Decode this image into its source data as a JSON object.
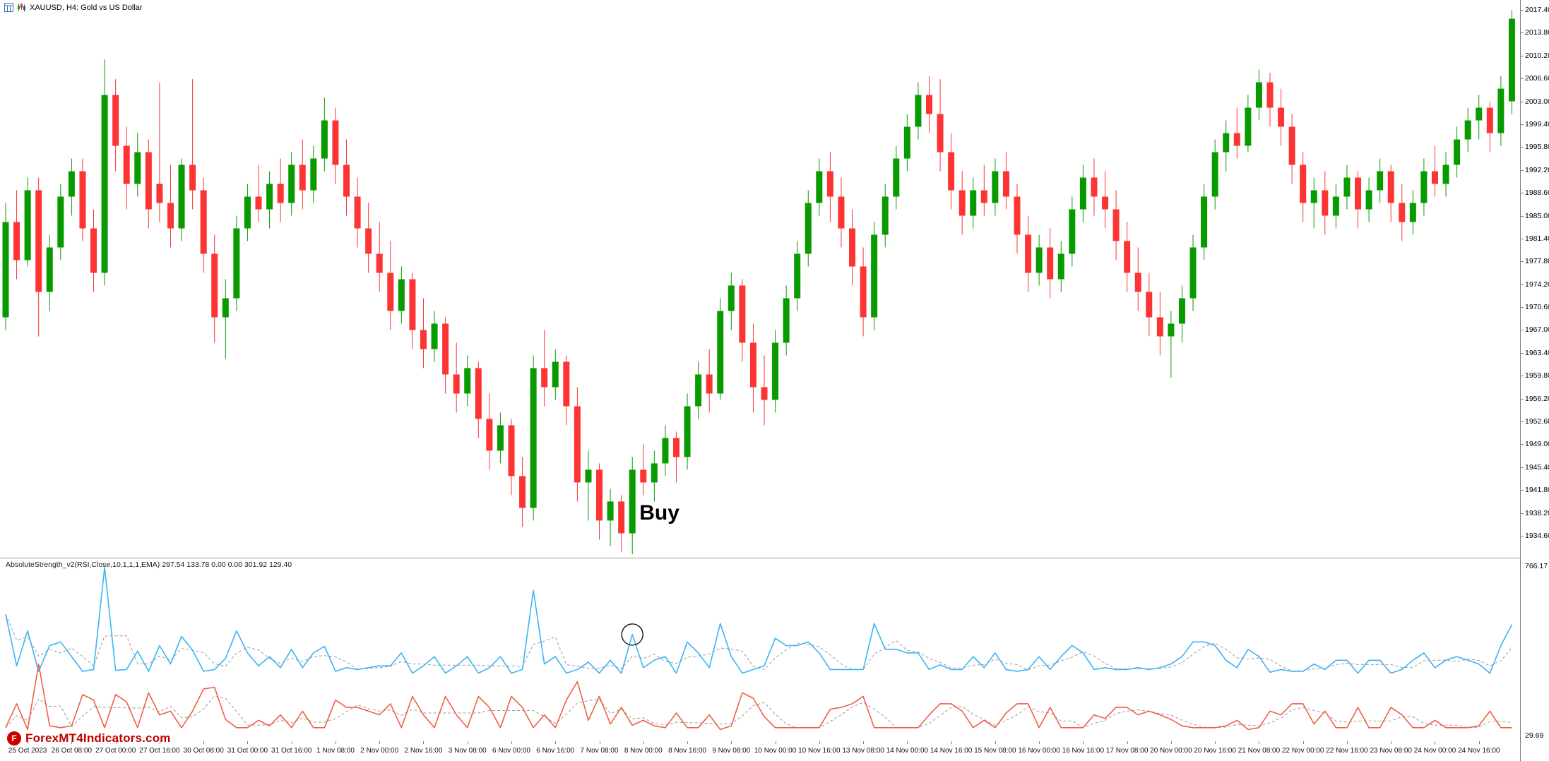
{
  "window": {
    "title": "XAUUSD, H4: Gold vs US Dollar",
    "symbol": "XAUUSD",
    "timeframe": "H4",
    "description": "Gold vs US Dollar",
    "icons": [
      "grid-window-icon",
      "candlestick-chart-icon"
    ]
  },
  "annotations": {
    "buy_label": "Buy",
    "buy_index": 57,
    "circle_index": 57
  },
  "watermark": {
    "logo_letter": "F",
    "text": "ForexMT4Indicators.com",
    "color": "#c00000"
  },
  "indicator_panel": {
    "label": "AbsoluteStrength_v2(RSI,Close,10,1,1,1,EMA) 297.54 133.78 0.00 0.00 301.92 129.40",
    "scale_max": "766.17",
    "scale_min": "29.69"
  },
  "price_axis": {
    "labels": [
      "2017.40",
      "2013.80",
      "2010.20",
      "2006.60",
      "2003.00",
      "1999.40",
      "1995.80",
      "1992.20",
      "1988.60",
      "1985.00",
      "1981.40",
      "1977.80",
      "1974.20",
      "1970.60",
      "1967.00",
      "1963.40",
      "1959.80",
      "1956.20",
      "1952.60",
      "1949.00",
      "1945.40",
      "1941.80",
      "1938.20",
      "1934.60"
    ]
  },
  "time_axis": {
    "labels": [
      "25 Oct 2023",
      "26 Oct 08:00",
      "27 Oct 00:00",
      "27 Oct 16:00",
      "30 Oct 08:00",
      "31 Oct 00:00",
      "31 Oct 16:00",
      "1 Nov 08:00",
      "2 Nov 00:00",
      "2 Nov 16:00",
      "3 Nov 08:00",
      "6 Nov 00:00",
      "6 Nov 16:00",
      "7 Nov 08:00",
      "8 Nov 00:00",
      "8 Nov 16:00",
      "9 Nov 08:00",
      "10 Nov 00:00",
      "10 Nov 16:00",
      "13 Nov 08:00",
      "14 Nov 00:00",
      "14 Nov 16:00",
      "15 Nov 08:00",
      "16 Nov 00:00",
      "16 Nov 16:00",
      "17 Nov 08:00",
      "20 Nov 00:00",
      "20 Nov 16:00",
      "21 Nov 08:00",
      "22 Nov 00:00",
      "22 Nov 16:00",
      "23 Nov 08:00",
      "24 Nov 00:00",
      "24 Nov 16:00"
    ],
    "first_label_bar_index": 2,
    "bars_per_label": 4
  },
  "chart_data": {
    "type": "candlestick",
    "symbol": "XAUUSD",
    "timeframe": "H4",
    "title": "XAUUSD, H4: Gold vs US Dollar",
    "ylim": [
      1934.6,
      2017.4
    ],
    "grid": false,
    "up_color": "#089b00",
    "down_color": "#fd3434",
    "candles_ohlc": [
      [
        1969,
        1987,
        1967,
        1984
      ],
      [
        1984,
        1989,
        1975,
        1978
      ],
      [
        1978,
        1991,
        1977,
        1989
      ],
      [
        1989,
        1991,
        1966,
        1973
      ],
      [
        1973,
        1982,
        1970,
        1980
      ],
      [
        1980,
        1990,
        1978,
        1988
      ],
      [
        1988,
        1994,
        1985,
        1992
      ],
      [
        1992,
        1994,
        1981,
        1983
      ],
      [
        1983,
        1986,
        1973,
        1976
      ],
      [
        1976,
        2009.6,
        1974,
        2004
      ],
      [
        2004,
        2006.5,
        1992,
        1996
      ],
      [
        1996,
        1999,
        1986,
        1990
      ],
      [
        1990,
        1998,
        1988,
        1995
      ],
      [
        1995,
        1997,
        1983,
        1986
      ],
      [
        1990,
        2006,
        1984,
        1987
      ],
      [
        1987,
        1993,
        1980,
        1983
      ],
      [
        1983,
        1994,
        1981,
        1993
      ],
      [
        1993,
        2006.5,
        1986,
        1989
      ],
      [
        1989,
        1991,
        1976,
        1979
      ],
      [
        1979,
        1982,
        1965,
        1969
      ],
      [
        1969,
        1975,
        1962.5,
        1972
      ],
      [
        1972,
        1985,
        1970,
        1983
      ],
      [
        1983,
        1990,
        1981,
        1988
      ],
      [
        1988,
        1993,
        1984,
        1986
      ],
      [
        1986,
        1992,
        1983,
        1990
      ],
      [
        1990,
        1994,
        1984,
        1987
      ],
      [
        1987,
        1995,
        1985,
        1993
      ],
      [
        1993,
        1997,
        1986,
        1989
      ],
      [
        1989,
        1996,
        1987,
        1994
      ],
      [
        1994,
        2003.6,
        1992,
        2000
      ],
      [
        2000,
        2002,
        1990,
        1993
      ],
      [
        1993,
        1997,
        1985,
        1988
      ],
      [
        1988,
        1991,
        1980,
        1983
      ],
      [
        1983,
        1987,
        1976,
        1979
      ],
      [
        1979,
        1984,
        1973,
        1976
      ],
      [
        1976,
        1981,
        1967,
        1970
      ],
      [
        1970,
        1977,
        1968,
        1975
      ],
      [
        1975,
        1976,
        1964,
        1967
      ],
      [
        1967,
        1972,
        1961,
        1964
      ],
      [
        1964,
        1970,
        1962,
        1968
      ],
      [
        1968,
        1969,
        1957,
        1960
      ],
      [
        1960,
        1965,
        1954,
        1957
      ],
      [
        1957,
        1963,
        1955,
        1961
      ],
      [
        1961,
        1962,
        1950,
        1953
      ],
      [
        1953,
        1957,
        1945,
        1948
      ],
      [
        1948,
        1954,
        1946,
        1952
      ],
      [
        1952,
        1953,
        1941,
        1944
      ],
      [
        1944,
        1947,
        1936,
        1939
      ],
      [
        1939,
        1963,
        1937,
        1961
      ],
      [
        1961,
        1967,
        1955,
        1958
      ],
      [
        1958,
        1964,
        1956,
        1962
      ],
      [
        1962,
        1963,
        1952,
        1955
      ],
      [
        1955,
        1958,
        1940,
        1943
      ],
      [
        1943,
        1948,
        1937,
        1945
      ],
      [
        1945,
        1946,
        1934,
        1937
      ],
      [
        1937,
        1942,
        1933,
        1940
      ],
      [
        1940,
        1941,
        1932,
        1935
      ],
      [
        1935,
        1947,
        1931.7,
        1945
      ],
      [
        1945,
        1949,
        1941,
        1943
      ],
      [
        1943,
        1948,
        1940,
        1946
      ],
      [
        1946,
        1952,
        1944,
        1950
      ],
      [
        1950,
        1951,
        1943,
        1947
      ],
      [
        1947,
        1957,
        1945,
        1955
      ],
      [
        1955,
        1962,
        1953,
        1960
      ],
      [
        1960,
        1964,
        1954,
        1957
      ],
      [
        1957,
        1972,
        1956,
        1970
      ],
      [
        1970,
        1976,
        1967,
        1974
      ],
      [
        1974,
        1975,
        1962,
        1965
      ],
      [
        1965,
        1968,
        1954,
        1958
      ],
      [
        1958,
        1963,
        1952,
        1956
      ],
      [
        1956,
        1967,
        1954,
        1965
      ],
      [
        1965,
        1974,
        1963,
        1972
      ],
      [
        1972,
        1981,
        1970,
        1979
      ],
      [
        1979,
        1989,
        1977,
        1987
      ],
      [
        1987,
        1994,
        1985,
        1992
      ],
      [
        1992,
        1995,
        1984,
        1988
      ],
      [
        1988,
        1991,
        1980,
        1983
      ],
      [
        1983,
        1986,
        1974,
        1977
      ],
      [
        1977,
        1980,
        1966,
        1969
      ],
      [
        1969,
        1984,
        1967,
        1982
      ],
      [
        1982,
        1990,
        1980,
        1988
      ],
      [
        1988,
        1996,
        1986,
        1994
      ],
      [
        1994,
        2001,
        1992,
        1999
      ],
      [
        1999,
        2006,
        1997,
        2004
      ],
      [
        2004,
        2007,
        1998,
        2001
      ],
      [
        2001,
        2006.5,
        1992,
        1995
      ],
      [
        1995,
        1998,
        1986,
        1989
      ],
      [
        1989,
        1992,
        1982,
        1985
      ],
      [
        1985,
        1991,
        1983,
        1989
      ],
      [
        1989,
        1993,
        1985,
        1987
      ],
      [
        1987,
        1994,
        1985,
        1992
      ],
      [
        1992,
        1995,
        1986,
        1988
      ],
      [
        1988,
        1990,
        1979,
        1982
      ],
      [
        1982,
        1985,
        1973,
        1976
      ],
      [
        1976,
        1982,
        1974,
        1980
      ],
      [
        1980,
        1983,
        1972,
        1975
      ],
      [
        1975,
        1981,
        1973,
        1979
      ],
      [
        1979,
        1988,
        1977,
        1986
      ],
      [
        1986,
        1993,
        1984,
        1991
      ],
      [
        1991,
        1994,
        1985,
        1988
      ],
      [
        1988,
        1992,
        1983,
        1986
      ],
      [
        1986,
        1989,
        1978,
        1981
      ],
      [
        1981,
        1984,
        1973,
        1976
      ],
      [
        1976,
        1980,
        1970,
        1973
      ],
      [
        1973,
        1976,
        1966,
        1969
      ],
      [
        1969,
        1973,
        1963,
        1966
      ],
      [
        1966,
        1970,
        1959.5,
        1968
      ],
      [
        1968,
        1974,
        1965,
        1972
      ],
      [
        1972,
        1982,
        1970,
        1980
      ],
      [
        1980,
        1990,
        1978,
        1988
      ],
      [
        1988,
        1997,
        1986,
        1995
      ],
      [
        1995,
        2000,
        1992,
        1998
      ],
      [
        1998,
        2002,
        1994,
        1996
      ],
      [
        1996,
        2004,
        1995,
        2002
      ],
      [
        2002,
        2008,
        2000,
        2006
      ],
      [
        2006,
        2007.5,
        1999,
        2002
      ],
      [
        2002,
        2005,
        1996,
        1999
      ],
      [
        1999,
        2001,
        1990,
        1993
      ],
      [
        1993,
        1995,
        1984,
        1987
      ],
      [
        1987,
        1991,
        1983,
        1989
      ],
      [
        1989,
        1992,
        1982,
        1985
      ],
      [
        1985,
        1990,
        1983,
        1988
      ],
      [
        1988,
        1993,
        1986,
        1991
      ],
      [
        1991,
        1992,
        1983,
        1986
      ],
      [
        1986,
        1991,
        1984,
        1989
      ],
      [
        1989,
        1994,
        1987,
        1992
      ],
      [
        1992,
        1993,
        1984,
        1987
      ],
      [
        1987,
        1990,
        1981,
        1984
      ],
      [
        1984,
        1989,
        1982,
        1987
      ],
      [
        1987,
        1994,
        1985,
        1992
      ],
      [
        1992,
        1996,
        1988,
        1990
      ],
      [
        1990,
        1995,
        1988,
        1993
      ],
      [
        1993,
        1999,
        1991,
        1997
      ],
      [
        1997,
        2002,
        1995,
        2000
      ],
      [
        2000,
        2004,
        1997,
        2002
      ],
      [
        2002,
        2003,
        1995,
        1998
      ],
      [
        1998,
        2007,
        1996,
        2005
      ],
      [
        2003,
        2017.4,
        2001,
        2016
      ]
    ],
    "indicator": {
      "name": "AbsoluteStrength_v2",
      "params": "RSI,Close,10,1,1,1,EMA",
      "current_values": [
        297.54,
        133.78,
        0.0,
        0.0,
        301.92,
        129.4
      ],
      "scale": [
        29.69,
        766.17
      ],
      "bulls_color": "#3cb4f2",
      "bears_color": "#f05f48",
      "smoothed_color": "#9b9b9b",
      "derivation": {
        "bulls_base": 293,
        "bears_base": 48,
        "gain": 16,
        "bulls_cap": 760,
        "bears_cap": 340,
        "smooth_window": 3
      }
    }
  }
}
